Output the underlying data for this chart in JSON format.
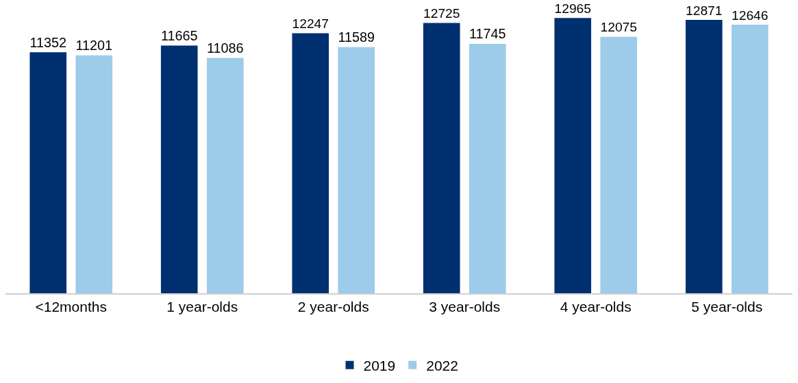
{
  "chart_data": {
    "type": "bar",
    "categories": [
      "<12months",
      "1 year-olds",
      "2 year-olds",
      "3 year-olds",
      "4 year-olds",
      "5 year-olds"
    ],
    "series": [
      {
        "name": "2019",
        "color": "#003070",
        "values": [
          11352,
          11665,
          12247,
          12725,
          12965,
          12871
        ]
      },
      {
        "name": "2022",
        "color": "#9dcbea",
        "values": [
          11201,
          11086,
          11589,
          11745,
          12075,
          12646
        ]
      }
    ],
    "data_labels": true,
    "legend": "bottom",
    "tick_labels": "x"
  }
}
